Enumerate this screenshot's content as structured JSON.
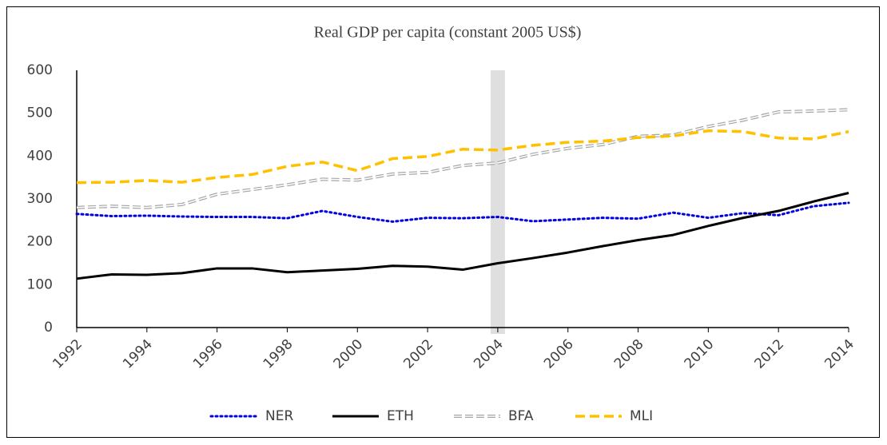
{
  "chart_data": {
    "type": "line",
    "title": "Real GDP per capita (constant 2005 US$)",
    "x": [
      1992,
      1993,
      1994,
      1995,
      1996,
      1997,
      1998,
      1999,
      2000,
      2001,
      2002,
      2003,
      2004,
      2005,
      2006,
      2007,
      2008,
      2009,
      2010,
      2011,
      2012,
      2013,
      2014
    ],
    "series": [
      {
        "name": "NER",
        "color": "#0000e0",
        "style": "dotted",
        "values": [
          265,
          260,
          261,
          259,
          258,
          258,
          255,
          272,
          258,
          247,
          256,
          255,
          258,
          248,
          252,
          256,
          254,
          268,
          256,
          267,
          262,
          283,
          291
        ]
      },
      {
        "name": "ETH",
        "color": "#000000",
        "style": "solid",
        "values": [
          114,
          124,
          123,
          127,
          138,
          138,
          129,
          133,
          137,
          144,
          142,
          135,
          150,
          162,
          175,
          190,
          204,
          216,
          237,
          256,
          272,
          294,
          314
        ]
      },
      {
        "name": "BFA",
        "color": "#a6a6a6",
        "style": "double-dashed",
        "values": [
          280,
          283,
          280,
          287,
          311,
          322,
          333,
          346,
          344,
          358,
          362,
          378,
          384,
          404,
          418,
          427,
          446,
          449,
          469,
          484,
          503,
          505,
          508
        ]
      },
      {
        "name": "MLI",
        "color": "#ffc000",
        "style": "dashed",
        "values": [
          338,
          339,
          343,
          339,
          350,
          357,
          376,
          386,
          366,
          394,
          399,
          416,
          414,
          425,
          432,
          435,
          443,
          447,
          459,
          457,
          442,
          440,
          457
        ]
      }
    ],
    "xlim": [
      1992,
      2014
    ],
    "xticks": [
      1992,
      1994,
      1996,
      1998,
      2000,
      2002,
      2004,
      2006,
      2008,
      2010,
      2012,
      2014
    ],
    "ylim": [
      0,
      600
    ],
    "yticks": [
      0,
      100,
      200,
      300,
      400,
      500,
      600
    ],
    "highlight_x": 2004,
    "legend": "bottom"
  }
}
